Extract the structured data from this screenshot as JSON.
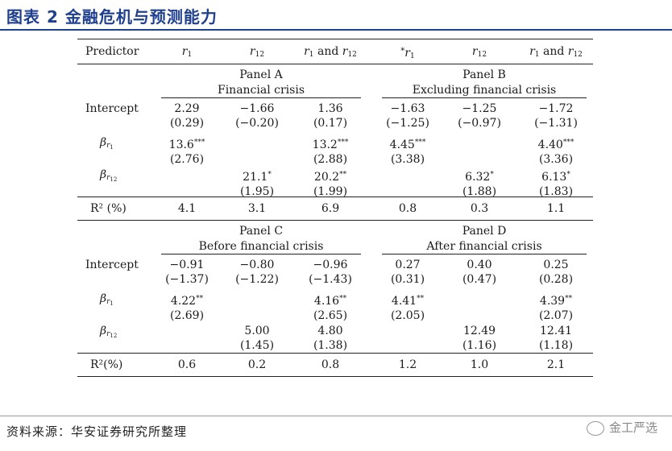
{
  "title": "图表 2 金融危机与预测能力",
  "source": "资料来源：华安证券研究所整理",
  "watermark": "金工严选",
  "header": {
    "predictor": "Predictor",
    "cols": [
      {
        "base": "r",
        "sub": "1",
        "prefix": ""
      },
      {
        "base": "r",
        "sub": "12",
        "prefix": ""
      },
      {
        "base": "r",
        "sub": "1",
        "mid": " and ",
        "base2": "r",
        "sub2": "12",
        "prefix": ""
      },
      {
        "base": "r",
        "sub": "1",
        "prefix": "*"
      },
      {
        "base": "r",
        "sub": "12",
        "prefix": ""
      },
      {
        "base": "r",
        "sub": "1",
        "mid": " and ",
        "base2": "r",
        "sub2": "12",
        "prefix": ""
      }
    ]
  },
  "panels": [
    {
      "left": {
        "name": "Panel A",
        "desc": "Financial crisis"
      },
      "right": {
        "name": "Panel B",
        "desc": "Excluding financial crisis"
      },
      "rows": [
        {
          "label": "Intercept",
          "cells": [
            [
              "2.29",
              "(0.29)"
            ],
            [
              "−1.66",
              "(−0.20)"
            ],
            [
              "1.36",
              "(0.17)"
            ],
            [
              "−1.63",
              "(−1.25)"
            ],
            [
              "−1.25",
              "(−0.97)"
            ],
            [
              "−1.72",
              "(−1.31)"
            ]
          ]
        },
        {
          "label": "β",
          "sub": "r1",
          "cells": [
            [
              "13.6***",
              "(2.76)"
            ],
            [
              "",
              ""
            ],
            [
              "13.2***",
              "(2.88)"
            ],
            [
              "4.45***",
              "(3.38)"
            ],
            [
              "",
              ""
            ],
            [
              "4.40***",
              "(3.36)"
            ]
          ]
        },
        {
          "label": "β",
          "sub": "r12",
          "cells": [
            [
              "",
              ""
            ],
            [
              "21.1*",
              "(1.95)"
            ],
            [
              "20.2**",
              "(1.99)"
            ],
            [
              "",
              ""
            ],
            [
              "6.32*",
              "(1.88)"
            ],
            [
              "6.13*",
              "(1.83)"
            ]
          ]
        }
      ],
      "r2_label": "R² (%)",
      "r2": [
        "4.1",
        "3.1",
        "6.9",
        "0.8",
        "0.3",
        "1.1"
      ]
    },
    {
      "left": {
        "name": "Panel C",
        "desc": "Before financial crisis"
      },
      "right": {
        "name": "Panel D",
        "desc": "After financial crisis"
      },
      "rows": [
        {
          "label": "Intercept",
          "cells": [
            [
              "−0.91",
              "(−1.37)"
            ],
            [
              "−0.80",
              "(−1.22)"
            ],
            [
              "−0.96",
              "(−1.43)"
            ],
            [
              "0.27",
              "(0.31)"
            ],
            [
              "0.40",
              "(0.47)"
            ],
            [
              "0.25",
              "(0.28)"
            ]
          ]
        },
        {
          "label": "β",
          "sub": "r1",
          "cells": [
            [
              "4.22**",
              "(2.69)"
            ],
            [
              "",
              ""
            ],
            [
              "4.16**",
              "(2.65)"
            ],
            [
              "4.41**",
              "(2.05)"
            ],
            [
              "",
              ""
            ],
            [
              "4.39**",
              "(2.07)"
            ]
          ]
        },
        {
          "label": "β",
          "sub": "r12",
          "cells": [
            [
              "",
              ""
            ],
            [
              "5.00",
              "(1.45)"
            ],
            [
              "4.80",
              "(1.38)"
            ],
            [
              "",
              ""
            ],
            [
              "12.49",
              "(1.16)"
            ],
            [
              "12.41",
              "(1.18)"
            ]
          ]
        }
      ],
      "r2_label": "R²(%)",
      "r2": [
        "0.6",
        "0.2",
        "0.8",
        "1.2",
        "1.0",
        "2.1"
      ]
    }
  ]
}
